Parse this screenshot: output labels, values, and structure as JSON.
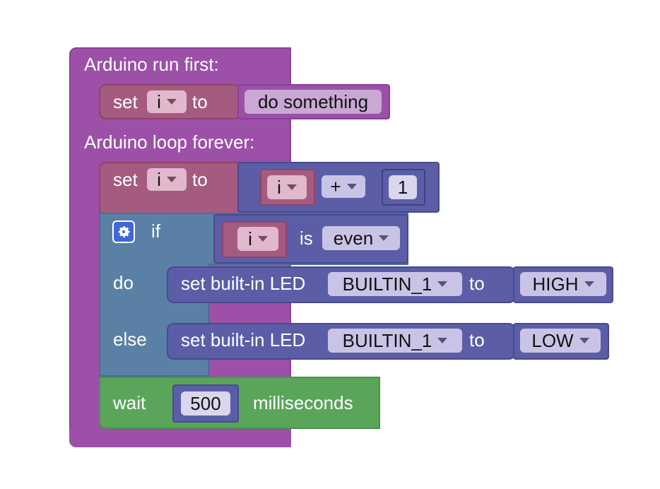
{
  "setup_block": {
    "label": "Arduino run first:"
  },
  "loop_block": {
    "label": "Arduino loop forever:"
  },
  "set_block_1": {
    "set": "set",
    "var": "i",
    "to": "to",
    "value": "do something"
  },
  "set_block_2": {
    "set": "set",
    "var": "i",
    "to": "to",
    "left": "i",
    "op": "+",
    "right": "1"
  },
  "if_block": {
    "if": "if",
    "do": "do",
    "else": "else",
    "var": "i",
    "is": "is",
    "check": "even"
  },
  "led_block_1": {
    "label": "set built-in LED",
    "pin": "BUILTIN_1",
    "to": "to",
    "state": "HIGH"
  },
  "led_block_2": {
    "label": "set built-in LED",
    "pin": "BUILTIN_1",
    "to": "to",
    "state": "LOW"
  },
  "wait_block": {
    "wait": "wait",
    "value": "500",
    "unit": "milliseconds"
  },
  "colors": {
    "arduino": "#9c50a8",
    "variables": "#a55b80",
    "math": "#5b5ea6",
    "logic": "#5b80a5",
    "time": "#5ba55b"
  }
}
